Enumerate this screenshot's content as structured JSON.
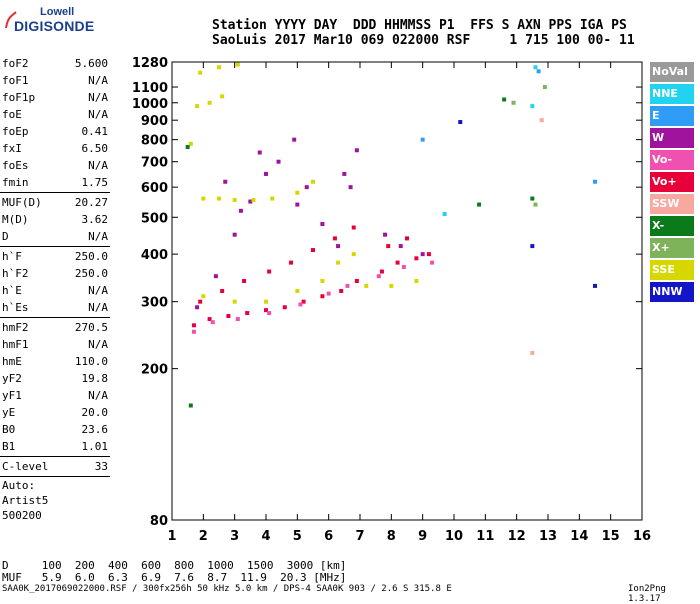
{
  "logo": {
    "line1": "Lowell",
    "line2": "DIGISONDE"
  },
  "header": {
    "line1": "Station YYYY DAY  DDD HHMMSS P1  FFS S AXN PPS IGA PS",
    "line2": "SaoLuis 2017 Mar10 069 022000 RSF     1 715 100 00- 11"
  },
  "params_a": [
    {
      "k": "foF2",
      "v": "5.600"
    },
    {
      "k": "foF1",
      "v": "N/A"
    },
    {
      "k": "foF1p",
      "v": "N/A"
    },
    {
      "k": "foE",
      "v": "N/A"
    },
    {
      "k": "foEp",
      "v": "0.41"
    },
    {
      "k": "fxI",
      "v": "6.50"
    },
    {
      "k": "foEs",
      "v": "N/A"
    },
    {
      "k": "fmin",
      "v": "1.75"
    }
  ],
  "params_b": [
    {
      "k": "MUF(D)",
      "v": "20.27"
    },
    {
      "k": "M(D)",
      "v": "3.62"
    },
    {
      "k": "D",
      "v": "N/A"
    }
  ],
  "params_c": [
    {
      "k": "h`F",
      "v": "250.0"
    },
    {
      "k": "h`F2",
      "v": "250.0"
    },
    {
      "k": "h`E",
      "v": "N/A"
    },
    {
      "k": "h`Es",
      "v": "N/A"
    }
  ],
  "params_d": [
    {
      "k": "hmF2",
      "v": "270.5"
    },
    {
      "k": "hmF1",
      "v": "N/A"
    },
    {
      "k": "hmE",
      "v": "110.0"
    },
    {
      "k": "yF2",
      "v": "19.8"
    },
    {
      "k": "yF1",
      "v": "N/A"
    },
    {
      "k": "yE",
      "v": "20.0"
    },
    {
      "k": "B0",
      "v": "23.6"
    },
    {
      "k": "B1",
      "v": "1.01"
    }
  ],
  "params_e": [
    {
      "k": "C-level",
      "v": "33"
    }
  ],
  "auto": {
    "l1": "Auto:",
    "l2": "Artist5",
    "l3": "500200"
  },
  "legend": [
    {
      "label": "NoVal",
      "color": "#9a9a9a"
    },
    {
      "label": "NNE",
      "color": "#22d3f0"
    },
    {
      "label": "E",
      "color": "#2f9df5"
    },
    {
      "label": "W",
      "color": "#a0139c"
    },
    {
      "label": "Vo-",
      "color": "#f050b0"
    },
    {
      "label": "Vo+",
      "color": "#e8003a"
    },
    {
      "label": "SSW",
      "color": "#f7a9a0"
    },
    {
      "label": "X-",
      "color": "#0a7a1a"
    },
    {
      "label": "X+",
      "color": "#7fb35a"
    },
    {
      "label": "SSE",
      "color": "#d7d700"
    },
    {
      "label": "NNW",
      "color": "#1515c8"
    }
  ],
  "footer": {
    "d_line": "D     100  200  400  600  800  1000  1500  3000 [km]",
    "muf_line": "MUF   5.9  6.0  6.3  6.9  7.6  8.7  11.9  20.3 [MHz]",
    "file_line": "SAA0K_2017069022000.RSF / 300fx256h 50 kHz 5.0 km / DPS-4 SAA0K 903 / 2.6 S 315.8 E",
    "version": "Ion2Png 1.3.17"
  },
  "chart_data": {
    "type": "scatter",
    "x_ticks": [
      "1",
      "2",
      "3",
      "4",
      "5",
      "6",
      "7",
      "8",
      "9",
      "10",
      "11",
      "12",
      "13",
      "14",
      "15",
      "16"
    ],
    "xlim": [
      1,
      16
    ],
    "y_ticks": [
      "80",
      "200",
      "300",
      "400",
      "500",
      "600",
      "700",
      "800",
      "900",
      "1000",
      "1100",
      "1280"
    ],
    "ylim": [
      80,
      1280
    ],
    "y_scale": "log",
    "grid": false,
    "series": [
      {
        "name": "Vo+",
        "color": "#e8003a",
        "points": [
          [
            1.7,
            260
          ],
          [
            2.2,
            270
          ],
          [
            2.8,
            275
          ],
          [
            3.4,
            280
          ],
          [
            4.0,
            285
          ],
          [
            4.6,
            290
          ],
          [
            5.2,
            300
          ],
          [
            5.8,
            310
          ],
          [
            6.4,
            320
          ],
          [
            6.9,
            340
          ],
          [
            7.7,
            360
          ],
          [
            8.2,
            380
          ],
          [
            8.8,
            390
          ],
          [
            9.2,
            400
          ],
          [
            1.9,
            300
          ],
          [
            2.6,
            320
          ],
          [
            3.3,
            340
          ],
          [
            4.1,
            360
          ],
          [
            4.8,
            380
          ],
          [
            5.5,
            410
          ],
          [
            6.2,
            440
          ],
          [
            6.8,
            470
          ],
          [
            7.9,
            420
          ],
          [
            8.5,
            440
          ]
        ]
      },
      {
        "name": "W",
        "color": "#a0139c",
        "points": [
          [
            1.8,
            290
          ],
          [
            2.4,
            350
          ],
          [
            3.0,
            450
          ],
          [
            3.5,
            550
          ],
          [
            4.0,
            650
          ],
          [
            4.4,
            700
          ],
          [
            4.9,
            800
          ],
          [
            5.3,
            600
          ],
          [
            5.8,
            480
          ],
          [
            6.3,
            420
          ],
          [
            6.7,
            600
          ],
          [
            6.9,
            750
          ],
          [
            7.8,
            450
          ],
          [
            8.3,
            420
          ],
          [
            9.0,
            400
          ],
          [
            3.2,
            520
          ],
          [
            3.8,
            740
          ],
          [
            2.7,
            620
          ],
          [
            5.0,
            540
          ],
          [
            6.5,
            650
          ]
        ]
      },
      {
        "name": "SSE",
        "color": "#d7d700",
        "points": [
          [
            1.6,
            780
          ],
          [
            2.0,
            560
          ],
          [
            2.5,
            560
          ],
          [
            3.0,
            555
          ],
          [
            3.6,
            555
          ],
          [
            4.2,
            560
          ],
          [
            1.8,
            980
          ],
          [
            2.2,
            1000
          ],
          [
            2.6,
            1040
          ],
          [
            1.9,
            1200
          ],
          [
            2.5,
            1240
          ],
          [
            3.1,
            1260
          ],
          [
            2.0,
            310
          ],
          [
            3.0,
            300
          ],
          [
            4.0,
            300
          ],
          [
            5.0,
            320
          ],
          [
            5.8,
            340
          ],
          [
            6.3,
            380
          ],
          [
            6.8,
            400
          ],
          [
            7.2,
            330
          ],
          [
            8.0,
            330
          ],
          [
            8.8,
            340
          ],
          [
            5.0,
            580
          ],
          [
            5.5,
            620
          ]
        ]
      },
      {
        "name": "Vo-",
        "color": "#f050b0",
        "points": [
          [
            1.7,
            250
          ],
          [
            2.3,
            265
          ],
          [
            3.1,
            270
          ],
          [
            4.1,
            280
          ],
          [
            5.1,
            295
          ],
          [
            6.0,
            315
          ],
          [
            6.6,
            330
          ],
          [
            7.6,
            350
          ],
          [
            8.4,
            370
          ],
          [
            9.3,
            380
          ]
        ]
      },
      {
        "name": "X-",
        "color": "#0a7a1a",
        "points": [
          [
            1.6,
            160
          ],
          [
            11.6,
            1020
          ],
          [
            12.5,
            560
          ],
          [
            10.8,
            540
          ],
          [
            1.5,
            765
          ]
        ]
      },
      {
        "name": "NNE",
        "color": "#22d3f0",
        "points": [
          [
            12.6,
            1240
          ],
          [
            9.7,
            510
          ],
          [
            12.5,
            980
          ]
        ]
      },
      {
        "name": "E",
        "color": "#2f9df5",
        "points": [
          [
            12.7,
            1210
          ],
          [
            9.0,
            800
          ],
          [
            14.5,
            620
          ]
        ]
      },
      {
        "name": "NNW",
        "color": "#1515c8",
        "points": [
          [
            10.2,
            890
          ],
          [
            12.5,
            420
          ],
          [
            14.5,
            330
          ]
        ]
      },
      {
        "name": "X+",
        "color": "#7fb35a",
        "points": [
          [
            12.9,
            1100
          ],
          [
            11.9,
            1000
          ],
          [
            12.6,
            540
          ]
        ]
      },
      {
        "name": "SSW",
        "color": "#f7a9a0",
        "points": [
          [
            12.5,
            220
          ],
          [
            12.8,
            900
          ]
        ]
      }
    ]
  }
}
